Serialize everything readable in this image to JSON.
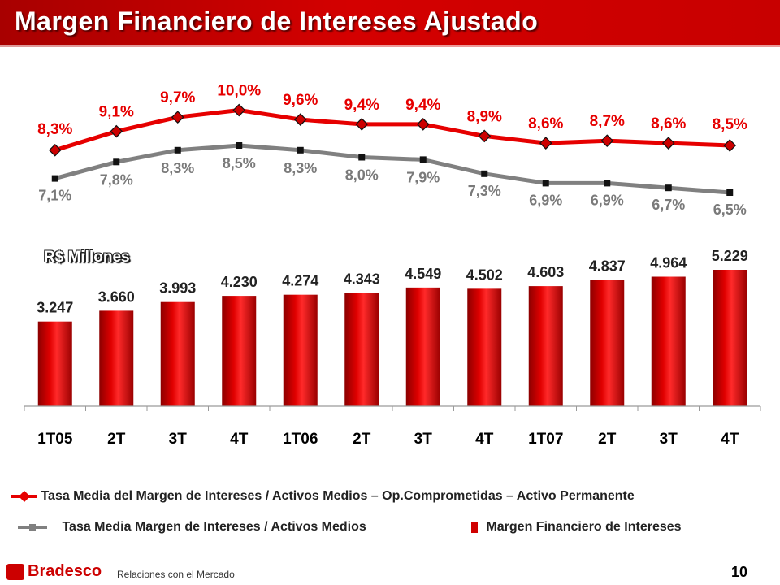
{
  "title": "Margen Financiero de Intereses Ajustado",
  "units_label": "R$ Millones",
  "chart_data": {
    "type": "bar",
    "categories": [
      "1T05",
      "2T",
      "3T",
      "4T",
      "1T06",
      "2T",
      "3T",
      "4T",
      "1T07",
      "2T",
      "3T",
      "4T"
    ],
    "series": [
      {
        "name": "Tasa Media del Margen de Intereses / Activos Medios – Op.Comprometidas – Activo Permanente",
        "type": "line",
        "values": [
          8.3,
          9.1,
          9.7,
          10.0,
          9.6,
          9.4,
          9.4,
          8.9,
          8.6,
          8.7,
          8.6,
          8.5
        ],
        "labels": [
          "8,3%",
          "9,1%",
          "9,7%",
          "10,0%",
          "9,6%",
          "9,4%",
          "9,4%",
          "8,9%",
          "8,6%",
          "8,7%",
          "8,6%",
          "8,5%"
        ],
        "color": "#e60000"
      },
      {
        "name": "Tasa Media Margen de Intereses / Activos Medios",
        "type": "line",
        "values": [
          7.1,
          7.8,
          8.3,
          8.5,
          8.3,
          8.0,
          7.9,
          7.3,
          6.9,
          6.9,
          6.7,
          6.5
        ],
        "labels": [
          "7,1%",
          "7,8%",
          "8,3%",
          "8,5%",
          "8,3%",
          "8,0%",
          "7,9%",
          "7,3%",
          "6,9%",
          "6,9%",
          "6,7%",
          "6,5%"
        ],
        "color": "#808080"
      },
      {
        "name": "Margen Financiero de Intereses",
        "type": "bar",
        "values": [
          3247,
          3660,
          3993,
          4230,
          4274,
          4343,
          4549,
          4502,
          4603,
          4837,
          4964,
          5229
        ],
        "labels": [
          "3.247",
          "3.660",
          "3.993",
          "4.230",
          "4.274",
          "4.343",
          "4.549",
          "4.502",
          "4.603",
          "4.837",
          "4.964",
          "5.229"
        ],
        "color": "#d00000"
      }
    ],
    "ylim": [
      0,
      5229
    ]
  },
  "footer": {
    "brand": "Bradesco",
    "department": "Relaciones con el Mercado",
    "page": "10"
  }
}
